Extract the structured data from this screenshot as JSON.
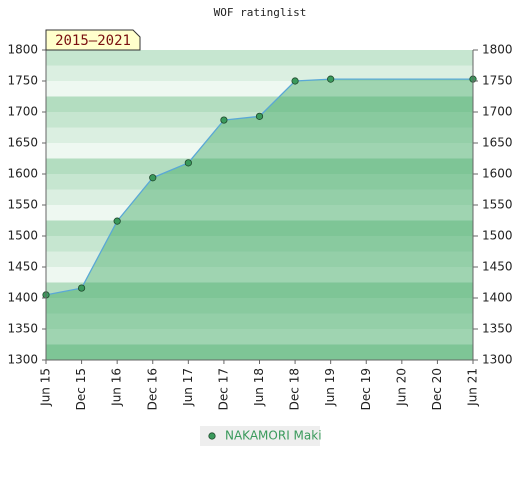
{
  "chart_data": {
    "type": "line",
    "title": "WOF ratinglist",
    "annotation": "2015–2021",
    "categories": [
      "Jun 15",
      "Dec 15",
      "Jun 16",
      "Dec 16",
      "Jun 17",
      "Dec 17",
      "Jun 18",
      "Dec 18",
      "Jun 19",
      "Dec 19",
      "Jun 20",
      "Dec 20",
      "Jun 21"
    ],
    "series": [
      {
        "name": "NAKAMORI Maki",
        "color": "#3a9a5c",
        "values": [
          1405,
          1416,
          1524,
          1594,
          1618,
          1687,
          1693,
          1750,
          1753,
          null,
          null,
          null,
          1753
        ]
      }
    ],
    "connect_gaps": true,
    "ylim": [
      1300,
      1800
    ],
    "yticks": [
      1300,
      1350,
      1400,
      1450,
      1500,
      1550,
      1600,
      1650,
      1700,
      1750,
      1800
    ],
    "y2lim": [
      1300,
      1800
    ],
    "y2ticks": [
      1300,
      1350,
      1400,
      1450,
      1500,
      1550,
      1600,
      1650,
      1700,
      1750,
      1800
    ]
  }
}
